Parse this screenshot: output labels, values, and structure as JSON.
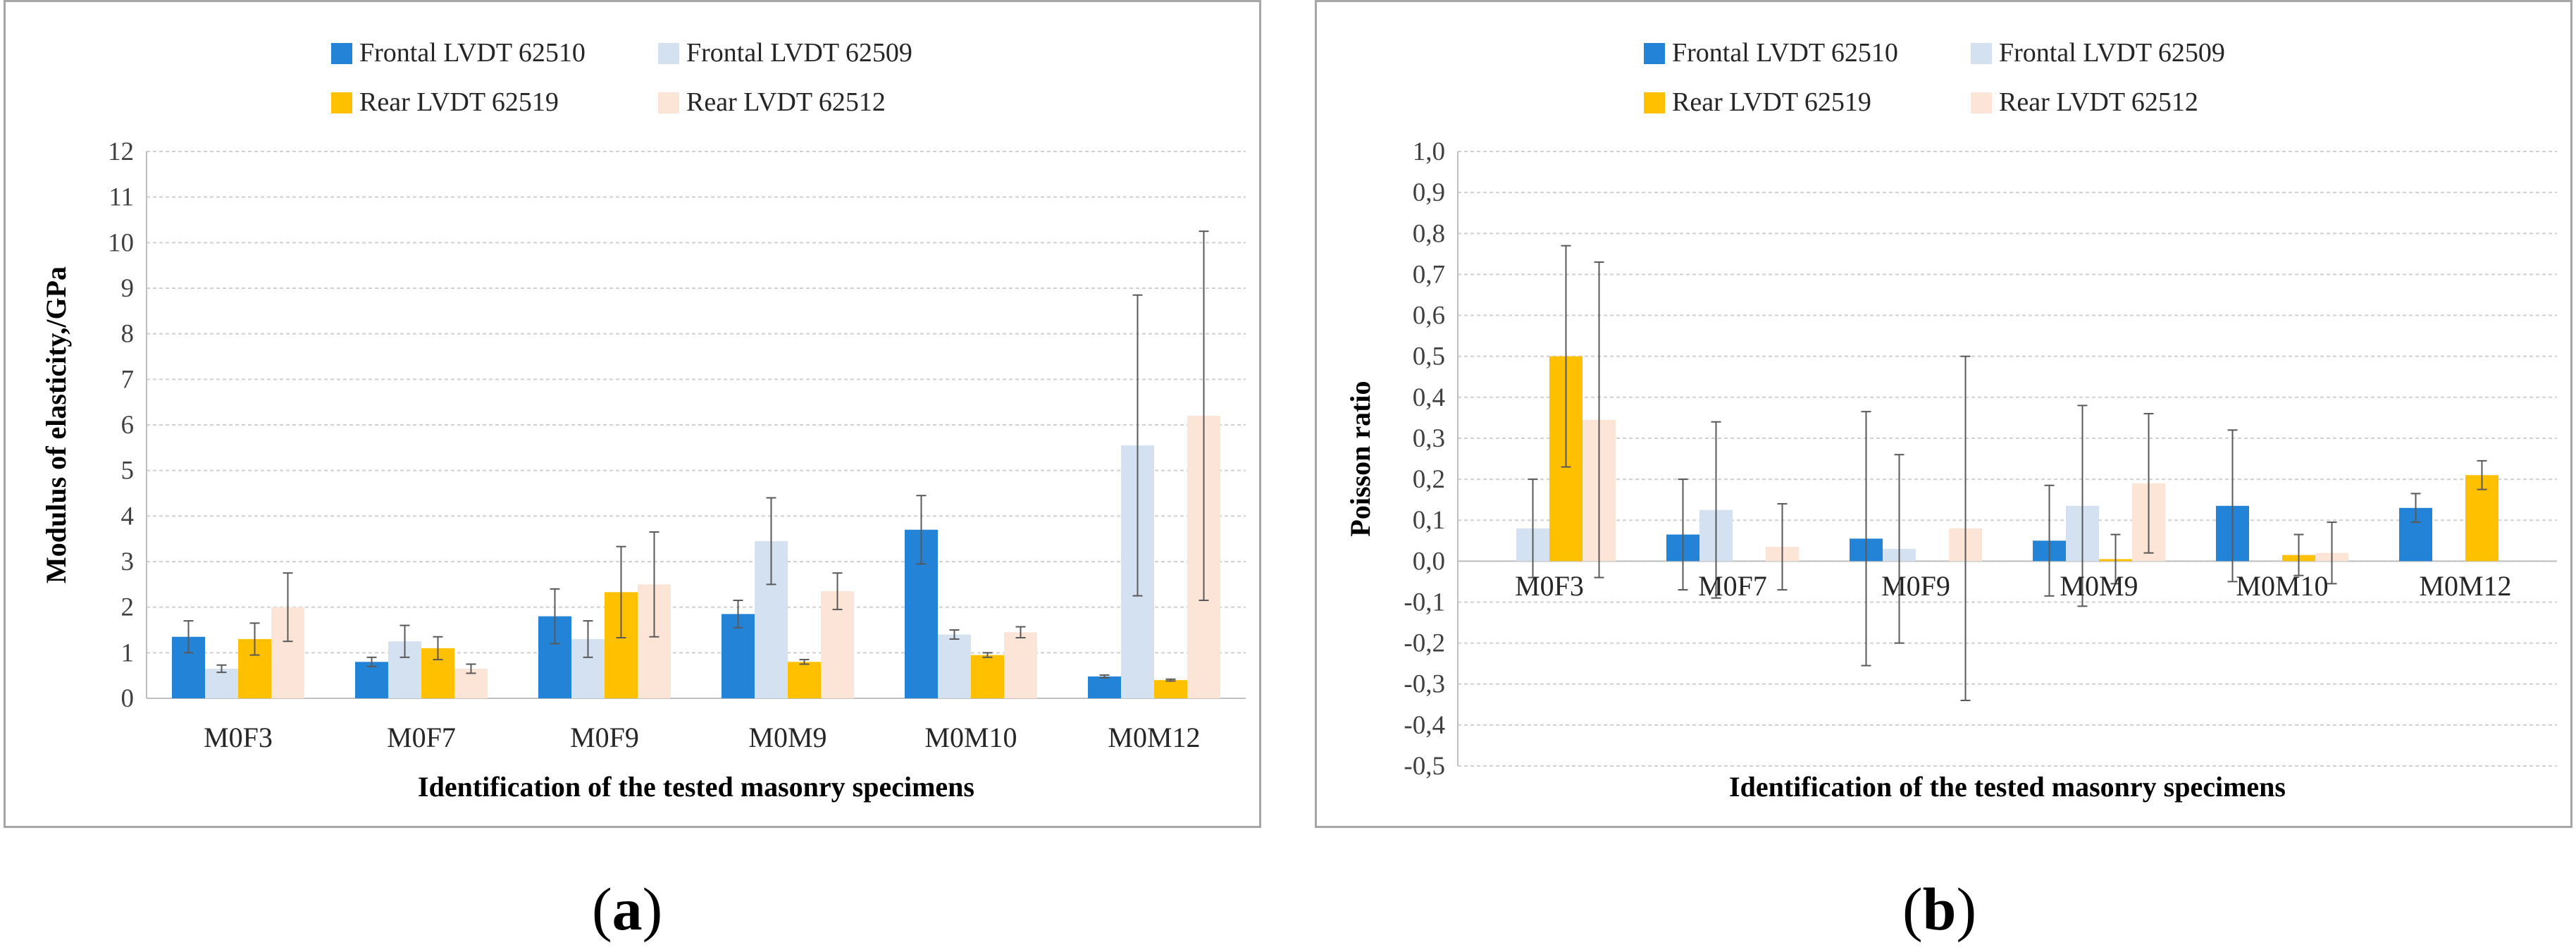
{
  "subfigures": [
    {
      "paren_open": "(",
      "label": "a",
      "paren_close": ")"
    },
    {
      "paren_open": "(",
      "label": "b",
      "paren_close": ")"
    }
  ],
  "chart_data": [
    {
      "type": "bar",
      "xlabel": "Identification of the tested masonry specimens",
      "ylabel": "Modulus of elasticity,/GPa",
      "ylim": [
        0,
        12
      ],
      "ytick_step": 1,
      "ytick_labels": [
        "0",
        "1",
        "2",
        "3",
        "4",
        "5",
        "6",
        "7",
        "8",
        "9",
        "10",
        "11",
        "12"
      ],
      "categories": [
        "M0F3",
        "M0F7",
        "M0F9",
        "M0M9",
        "M0M10",
        "M0M12"
      ],
      "legend_position": "top",
      "series": [
        {
          "name": "Frontal LVDT 62510",
          "color": "#2383d6",
          "values": [
            1.35,
            0.8,
            1.8,
            1.85,
            3.7,
            0.48
          ],
          "errors": [
            0.35,
            0.1,
            0.6,
            0.3,
            0.75,
            0.03
          ]
        },
        {
          "name": "Frontal LVDT 62509",
          "color": "#d4e1f0",
          "values": [
            0.65,
            1.25,
            1.3,
            3.45,
            1.4,
            5.55
          ],
          "errors": [
            0.08,
            0.35,
            0.4,
            0.95,
            0.1,
            3.3
          ]
        },
        {
          "name": "Rear LVDT 62519",
          "color": "#ffc000",
          "values": [
            1.3,
            1.1,
            2.33,
            0.8,
            0.95,
            0.4
          ],
          "errors": [
            0.35,
            0.25,
            1.0,
            0.05,
            0.05,
            0.02
          ]
        },
        {
          "name": "Rear LVDT 62512",
          "color": "#fce4d6",
          "values": [
            2.0,
            0.65,
            2.5,
            2.35,
            1.45,
            6.2
          ],
          "errors": [
            0.75,
            0.1,
            1.15,
            0.4,
            0.12,
            4.05
          ]
        }
      ]
    },
    {
      "type": "bar",
      "xlabel": "Identification of the tested masonry specimens",
      "ylabel": "Poisson ratio",
      "ylim": [
        -0.5,
        1.0
      ],
      "ytick_step": 0.1,
      "ytick_labels": [
        "-0,5",
        "-0,4",
        "-0,3",
        "-0,2",
        "-0,1",
        "0,0",
        "0,1",
        "0,2",
        "0,3",
        "0,4",
        "0,5",
        "0,6",
        "0,7",
        "0,8",
        "0,9",
        "1,0"
      ],
      "categories": [
        "M0F3",
        "M0F7",
        "M0F9",
        "M0M9",
        "M0M10",
        "M0M12"
      ],
      "legend_position": "top",
      "series": [
        {
          "name": "Frontal LVDT 62510",
          "color": "#2383d6",
          "values": [
            null,
            0.065,
            0.055,
            0.05,
            0.135,
            0.13
          ],
          "errors": [
            null,
            0.135,
            0.31,
            0.135,
            0.185,
            0.035
          ]
        },
        {
          "name": "Frontal LVDT 62509",
          "color": "#d4e1f0",
          "values": [
            0.08,
            0.125,
            0.03,
            0.135,
            null,
            null
          ],
          "errors": [
            0.12,
            0.215,
            0.23,
            0.245,
            null,
            null
          ]
        },
        {
          "name": "Rear LVDT 62519",
          "color": "#ffc000",
          "values": [
            0.5,
            null,
            null,
            0.005,
            0.015,
            0.21
          ],
          "errors": [
            0.27,
            null,
            null,
            0.06,
            0.05,
            0.035
          ]
        },
        {
          "name": "Rear LVDT 62512",
          "color": "#fce4d6",
          "values": [
            0.345,
            0.035,
            0.08,
            0.19,
            0.02,
            null
          ],
          "errors": [
            0.385,
            0.105,
            0.42,
            0.17,
            0.075,
            null
          ]
        }
      ]
    }
  ]
}
